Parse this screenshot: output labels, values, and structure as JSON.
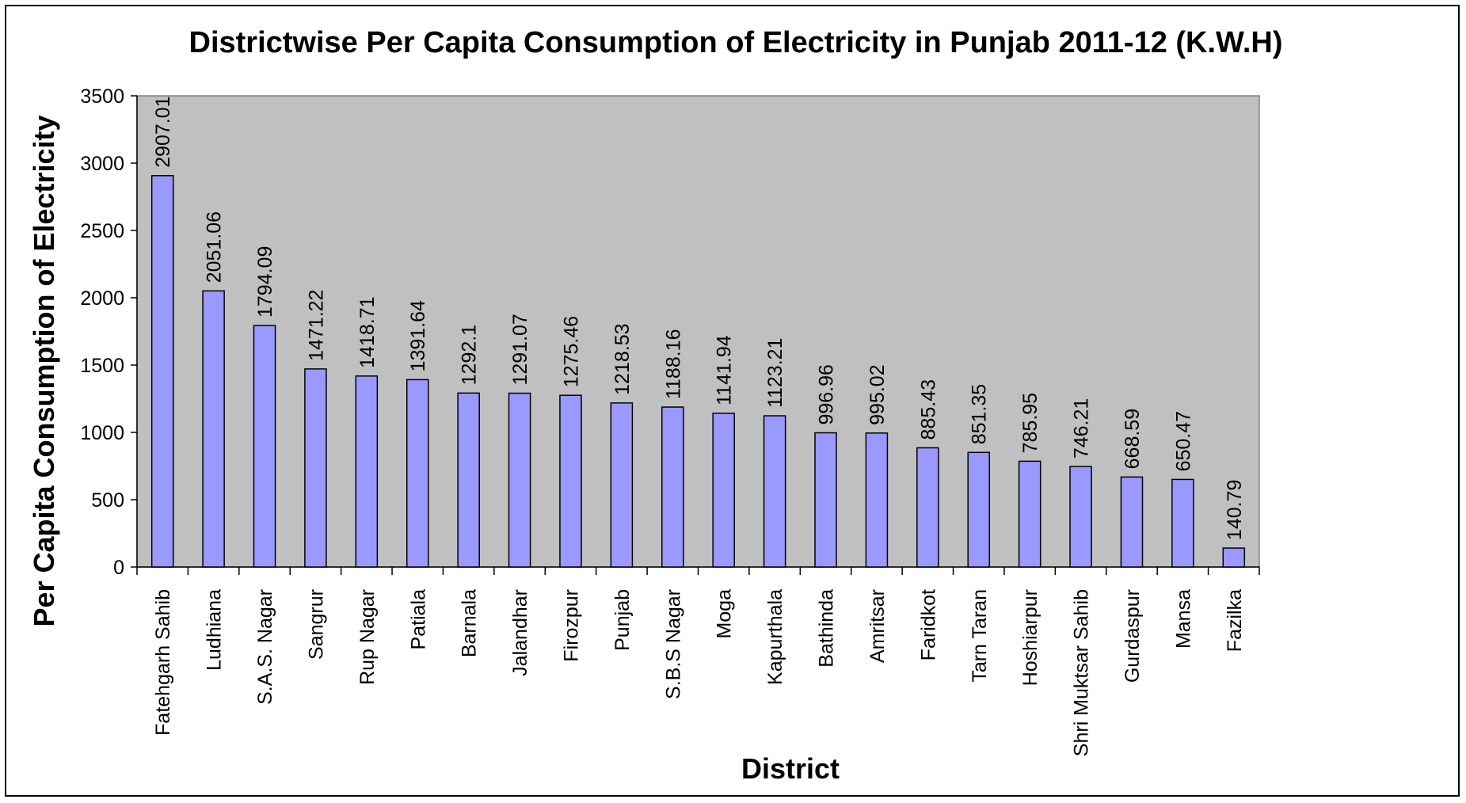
{
  "chart_data": {
    "type": "bar",
    "title": "Districtwise Per Capita Consumption of Electricity in Punjab 2011-12 (K.W.H)",
    "xlabel": "District",
    "ylabel": "Per Capita Consumption of Electricity",
    "ylim": [
      0,
      3500
    ],
    "yticks": [
      0,
      500,
      1000,
      1500,
      2000,
      2500,
      3000,
      3500
    ],
    "grid": false,
    "colors": {
      "bar": "#9999ff",
      "plot_bg": "#c0c0c0",
      "bar_stroke": "#000000"
    },
    "categories": [
      "Fatehgarh Sahib",
      "Ludhiana",
      "S.A.S. Nagar",
      "Sangrur",
      "Rup Nagar",
      "Patiala",
      "Barnala",
      "Jalandhar",
      "Firozpur",
      "Punjab",
      "S.B.S Nagar",
      "Moga",
      "Kapurthala",
      "Bathinda",
      "Amritsar",
      "Faridkot",
      "Tarn Taran",
      "Hoshiarpur",
      "Shri Muktsar Sahib",
      "Gurdaspur",
      "Mansa",
      "Fazilka"
    ],
    "values": [
      2907.01,
      2051.06,
      1794.09,
      1471.22,
      1418.71,
      1391.64,
      1292.1,
      1291.07,
      1275.46,
      1218.53,
      1188.16,
      1141.94,
      1123.21,
      996.96,
      995.02,
      885.43,
      851.35,
      785.95,
      746.21,
      668.59,
      650.47,
      140.79
    ],
    "value_labels": [
      "2907.01",
      "2051.06",
      "1794.09",
      "1471.22",
      "1418.71",
      "1391.64",
      "1292.1",
      "1291.07",
      "1275.46",
      "1218.53",
      "1188.16",
      "1141.94",
      "1123.21",
      "996.96",
      "995.02",
      "885.43",
      "851.35",
      "785.95",
      "746.21",
      "668.59",
      "650.47",
      "140.79"
    ]
  }
}
